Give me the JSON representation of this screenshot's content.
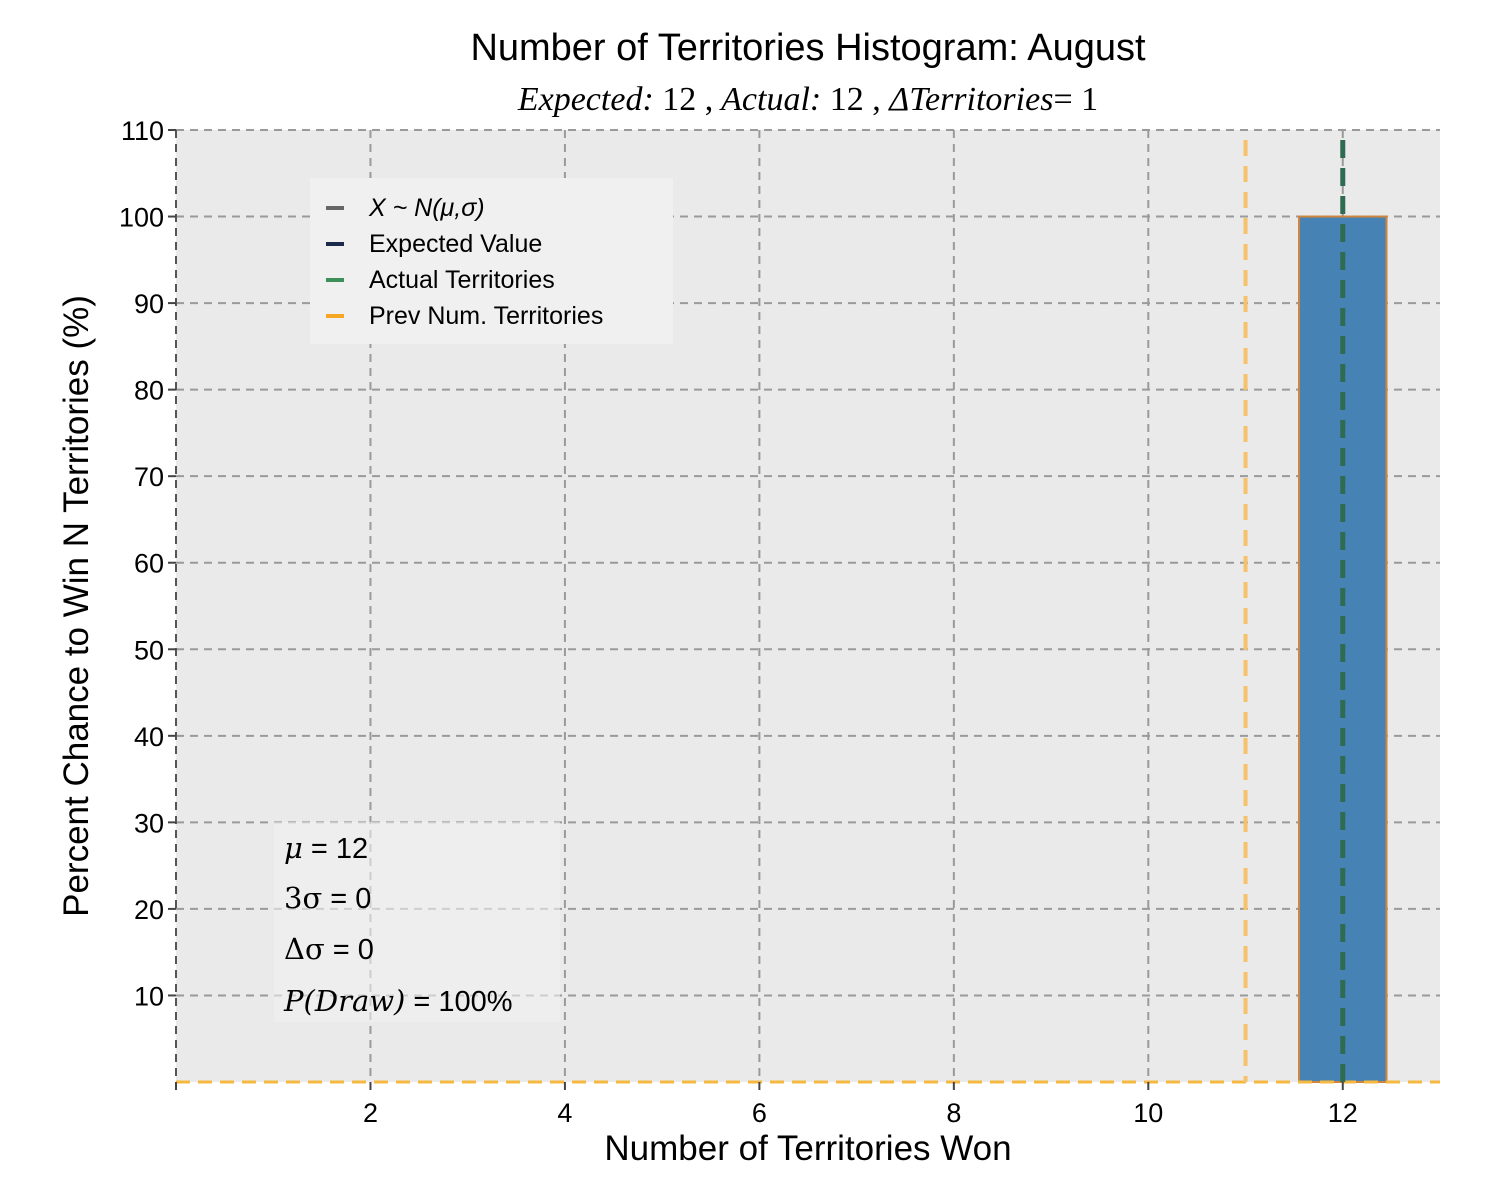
{
  "chart_data": {
    "type": "bar",
    "title": "Number of Territories Histogram: August",
    "subtitle": {
      "expected_label": "Expected:",
      "expected_value": "12",
      "actual_label": "Actual:",
      "actual_value": "12",
      "delta_label": "ΔTerritories",
      "delta_value": "= 1",
      "separator": ","
    },
    "xlabel": "Number of Territories Won",
    "ylabel": "Percent Chance to Win N Territories (%)",
    "xlim": [
      0,
      13
    ],
    "ylim": [
      0,
      110
    ],
    "xticks": [
      2,
      4,
      6,
      8,
      10,
      12
    ],
    "yticks": [
      10,
      20,
      30,
      40,
      50,
      60,
      70,
      80,
      90,
      100,
      110
    ],
    "grid": true,
    "bars": [
      {
        "x": 12,
        "width": 0.9,
        "value": 100
      }
    ],
    "bar_color": "#4682b4",
    "bar_edge_color": "#cd853f",
    "vlines": [
      {
        "name": "Actual Territories",
        "x": 12,
        "ymax": 110,
        "color": "#2f6b50"
      },
      {
        "name": "Prev Num. Territories",
        "x": 11,
        "ymax": 110,
        "color": "#f5c26b"
      }
    ],
    "hline_baseline": {
      "y": 0,
      "color": "#f5b942"
    },
    "legend": {
      "placement": "upper-left",
      "entries": [
        {
          "label": "X ~ N(μ,σ)",
          "color": "#666666",
          "italic": true
        },
        {
          "label": "Expected Value",
          "color": "#1b2a4a",
          "italic": false
        },
        {
          "label": "Actual Territories",
          "color": "#3c8f5a",
          "italic": false
        },
        {
          "label": "Prev Num. Territories",
          "color": "#f5a623",
          "italic": false
        }
      ]
    },
    "stats_box": {
      "placement": "lower-left",
      "lines": [
        {
          "label": "μ",
          "rest": " = 12"
        },
        {
          "label": "3σ",
          "rest": " = 0"
        },
        {
          "label": "Δσ",
          "rest": " = 0"
        },
        {
          "label": "P(Draw)",
          "rest": " = 100%"
        }
      ]
    },
    "colors": {
      "plot_background": "#eaeaea",
      "grid": "#9a9a9a",
      "legend_background": "#f0f0f0"
    }
  }
}
